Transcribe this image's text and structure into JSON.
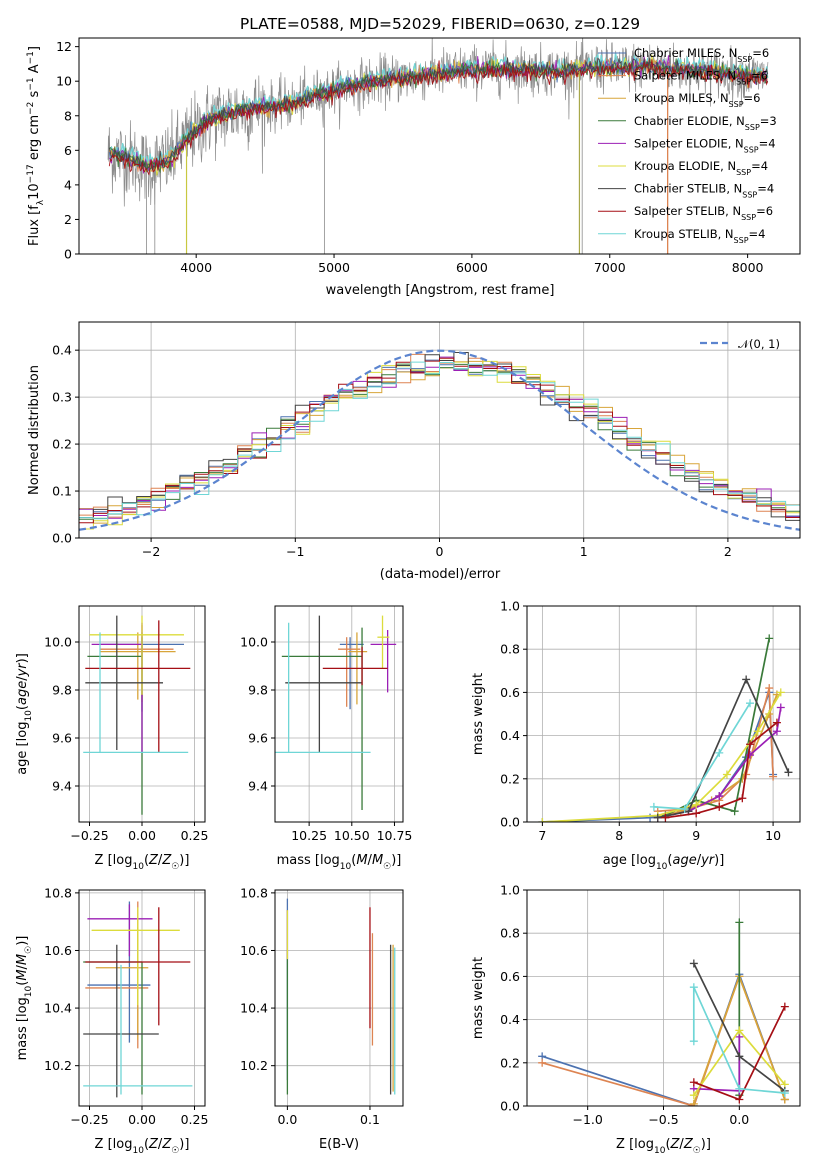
{
  "colors": [
    "#4c72b0",
    "#dd8452",
    "#d8a53a",
    "#3a7a3a",
    "#9b1fb5",
    "#dcdc3c",
    "#444444",
    "#a50f15",
    "#6fd6d6"
  ],
  "chart_data": [
    {
      "id": "spectrum",
      "type": "line",
      "title": "PLATE=0588, MJD=52029, FIBERID=0630, z=0.129",
      "xlabel": "wavelength [Angstrom, rest frame]",
      "ylabel": "Flux [fλ10⁻¹⁷ erg cm⁻² s⁻¹ A⁻¹]",
      "xlim": [
        3150,
        8380
      ],
      "ylim": [
        0,
        12.5
      ],
      "xticks": [
        4000,
        5000,
        6000,
        7000,
        8000
      ],
      "yticks": [
        0,
        2,
        4,
        6,
        8,
        10,
        12
      ],
      "grid": false,
      "legend_position": "top-right",
      "legend": [
        {
          "label": "Chabrier MILES, N_SSP=6",
          "main": "Chabrier MILES, N",
          "sub": "SSP",
          "tail": "=6"
        },
        {
          "label": "Salpeter MILES, N_SSP=6",
          "main": "Salpeter MILES, N",
          "sub": "SSP",
          "tail": "=6"
        },
        {
          "label": "Kroupa MILES, N_SSP=6",
          "main": "Kroupa MILES, N",
          "sub": "SSP",
          "tail": "=6"
        },
        {
          "label": "Chabrier ELODIE, N_SSP=3",
          "main": "Chabrier ELODIE, N",
          "sub": "SSP",
          "tail": "=3"
        },
        {
          "label": "Salpeter ELODIE, N_SSP=4",
          "main": "Salpeter ELODIE, N",
          "sub": "SSP",
          "tail": "=4"
        },
        {
          "label": "Kroupa ELODIE, N_SSP=4",
          "main": "Kroupa ELODIE, N",
          "sub": "SSP",
          "tail": "=4"
        },
        {
          "label": "Chabrier STELIB, N_SSP=4",
          "main": "Chabrier STELIB, N",
          "sub": "SSP",
          "tail": "=4"
        },
        {
          "label": "Salpeter STELIB, N_SSP=6",
          "main": "Salpeter STELIB, N",
          "sub": "SSP",
          "tail": "=6"
        },
        {
          "label": "Kroupa STELIB, N_SSP=4",
          "main": "Kroupa STELIB, N",
          "sub": "SSP",
          "tail": "=4"
        }
      ],
      "data_trend": {
        "x": [
          3370,
          3500,
          3650,
          3800,
          3950,
          4100,
          4300,
          4500,
          4700,
          4900,
          5100,
          5300,
          5500,
          5700,
          5900,
          6100,
          6300,
          6500,
          6700,
          6900,
          7100,
          7300,
          7500,
          7700,
          7900,
          8100
        ],
        "y": [
          5.8,
          5.6,
          5.0,
          5.4,
          6.8,
          7.8,
          8.3,
          8.5,
          8.7,
          9.3,
          9.7,
          10.0,
          10.2,
          10.4,
          10.6,
          10.7,
          10.7,
          10.6,
          10.6,
          10.8,
          10.8,
          10.9,
          10.7,
          10.6,
          10.4,
          10.3
        ]
      },
      "features": {
        "gray_spikes_down": [
          3640,
          3700,
          4930,
          6800
        ],
        "orange_drop_x": 7420,
        "olive_drop_x": 6780,
        "yellow_spike_x": 3930
      }
    },
    {
      "id": "residuals",
      "type": "histogram",
      "xlabel": "(data-model)/error",
      "ylabel": "Normed distribution",
      "xlim": [
        -2.5,
        2.5
      ],
      "ylim": [
        0,
        0.46
      ],
      "xticks": [
        -2,
        -1,
        0,
        1,
        2
      ],
      "yticks": [
        0.0,
        0.1,
        0.2,
        0.3,
        0.4
      ],
      "grid": true,
      "legend_position": "top-right",
      "legend": [
        "𝒩(0, 1)"
      ],
      "bin_width": 0.1,
      "reference_curve": "normal pdf, mean 0, sd 1 (dashed)"
    },
    {
      "id": "Z_vs_age",
      "type": "errorbar",
      "xlabel": "Z [log10(Z/Z☉)]",
      "ylabel": "age [log10(age/yr)]",
      "xlim": [
        -0.3,
        0.3
      ],
      "ylim": [
        9.25,
        10.15
      ],
      "xticks": [
        -0.25,
        0.0,
        0.25
      ],
      "yticks": [
        9.4,
        9.6,
        9.8,
        10.0
      ],
      "grid": true,
      "points": [
        {
          "x": 0.0,
          "xerr": [
            0.2,
            0.2
          ],
          "y": 9.99,
          "yerr": [
            0.28,
            0.05
          ]
        },
        {
          "x": 0.0,
          "xerr": [
            0.2,
            0.15
          ],
          "y": 9.97,
          "yerr": [
            0.22,
            0.1
          ]
        },
        {
          "x": -0.02,
          "xerr": [
            0.18,
            0.18
          ],
          "y": 9.96,
          "yerr": [
            0.2,
            0.08
          ]
        },
        {
          "x": 0.0,
          "xerr": [
            0.26,
            0.0
          ],
          "y": 9.94,
          "yerr": [
            0.66,
            0.08
          ]
        },
        {
          "x": 0.0,
          "xerr": [
            0.24,
            0.0
          ],
          "y": 9.99,
          "yerr": [
            0.45,
            0.09
          ]
        },
        {
          "x": 0.0,
          "xerr": [
            0.25,
            0.2
          ],
          "y": 10.03,
          "yerr": [
            0.25,
            0.08
          ]
        },
        {
          "x": -0.12,
          "xerr": [
            0.15,
            0.22
          ],
          "y": 9.83,
          "yerr": [
            0.28,
            0.28
          ]
        },
        {
          "x": 0.08,
          "xerr": [
            0.35,
            0.15
          ],
          "y": 9.89,
          "yerr": [
            0.35,
            0.2
          ]
        },
        {
          "x": -0.2,
          "xerr": [
            0.08,
            0.42
          ],
          "y": 9.54,
          "yerr": [
            0.0,
            0.5
          ]
        }
      ]
    },
    {
      "id": "mass_vs_age",
      "type": "errorbar",
      "xlabel": "mass [log10(M/M☉)]",
      "ylabel": "",
      "xlim": [
        10.05,
        10.8
      ],
      "ylim": [
        9.25,
        10.15
      ],
      "xticks": [
        10.25,
        10.5,
        10.75
      ],
      "yticks": [
        9.4,
        9.6,
        9.8,
        10.0
      ],
      "grid": true,
      "points": [
        {
          "x": 10.49,
          "xerr": [
            0.06,
            0.08
          ],
          "y": 9.99,
          "yerr": [
            0.27,
            0.03
          ]
        },
        {
          "x": 10.47,
          "xerr": [
            0.05,
            0.08
          ],
          "y": 9.97,
          "yerr": [
            0.24,
            0.05
          ]
        },
        {
          "x": 10.53,
          "xerr": [
            0.05,
            0.06
          ],
          "y": 9.96,
          "yerr": [
            0.22,
            0.08
          ]
        },
        {
          "x": 10.56,
          "xerr": [
            0.47,
            0.0
          ],
          "y": 9.94,
          "yerr": [
            0.64,
            0.12
          ]
        },
        {
          "x": 10.71,
          "xerr": [
            0.1,
            0.05
          ],
          "y": 9.99,
          "yerr": [
            0.2,
            0.06
          ]
        },
        {
          "x": 10.68,
          "xerr": [
            0.03,
            0.04
          ],
          "y": 10.02,
          "yerr": [
            0.13,
            0.09
          ]
        },
        {
          "x": 10.31,
          "xerr": [
            0.2,
            0.25
          ],
          "y": 9.83,
          "yerr": [
            0.29,
            0.28
          ]
        },
        {
          "x": 10.56,
          "xerr": [
            0.23,
            0.15
          ],
          "y": 9.89,
          "yerr": [
            0.07,
            0.09
          ]
        },
        {
          "x": 10.13,
          "xerr": [
            0.1,
            0.48
          ],
          "y": 9.54,
          "yerr": [
            0.0,
            0.54
          ]
        }
      ]
    },
    {
      "id": "age_weights",
      "type": "line",
      "xlabel": "age [log10(age/yr)]",
      "ylabel": "mass weight",
      "xlim": [
        6.8,
        10.35
      ],
      "ylim": [
        0.0,
        1.0
      ],
      "xticks": [
        7,
        8,
        9,
        10
      ],
      "yticks": [
        0.0,
        0.2,
        0.4,
        0.6,
        0.8,
        1.0
      ],
      "grid": true,
      "series": [
        {
          "x": [
            7.0,
            8.4,
            8.9,
            9.3,
            9.65,
            9.95,
            10.0
          ],
          "y": [
            0.0,
            0.02,
            0.05,
            0.12,
            0.3,
            0.6,
            0.22
          ]
        },
        {
          "x": [
            8.5,
            8.9,
            9.3,
            9.65,
            9.95,
            10.0
          ],
          "y": [
            0.05,
            0.06,
            0.1,
            0.22,
            0.62,
            0.21
          ]
        },
        {
          "x": [
            8.5,
            8.8,
            9.2,
            9.6,
            9.95,
            10.05
          ],
          "y": [
            0.02,
            0.05,
            0.1,
            0.2,
            0.5,
            0.59
          ]
        },
        {
          "x": [
            8.6,
            9.0,
            9.5,
            9.95
          ],
          "y": [
            0.03,
            0.1,
            0.05,
            0.85
          ]
        },
        {
          "x": [
            8.5,
            8.9,
            9.3,
            9.7,
            10.05,
            10.1
          ],
          "y": [
            0.02,
            0.05,
            0.12,
            0.31,
            0.42,
            0.53
          ]
        },
        {
          "x": [
            7.0,
            8.5,
            9.0,
            9.4,
            9.8,
            10.1
          ],
          "y": [
            0.0,
            0.03,
            0.08,
            0.22,
            0.42,
            0.6
          ]
        },
        {
          "x": [
            8.5,
            8.9,
            9.65,
            10.2
          ],
          "y": [
            0.02,
            0.05,
            0.66,
            0.23
          ]
        },
        {
          "x": [
            8.6,
            9.0,
            9.3,
            9.6,
            9.7,
            10.05
          ],
          "y": [
            0.02,
            0.04,
            0.07,
            0.11,
            0.36,
            0.46
          ]
        },
        {
          "x": [
            8.45,
            8.85,
            9.3,
            9.7
          ],
          "y": [
            0.07,
            0.06,
            0.32,
            0.55
          ]
        }
      ]
    },
    {
      "id": "Z_vs_mass",
      "type": "errorbar",
      "xlabel": "Z [log10(Z/Z☉)]",
      "ylabel": "mass [log10(M/M☉)]",
      "xlim": [
        -0.3,
        0.3
      ],
      "ylim": [
        10.06,
        10.81
      ],
      "xticks": [
        -0.25,
        0.0,
        0.25
      ],
      "yticks": [
        10.2,
        10.4,
        10.6,
        10.8
      ],
      "grid": true,
      "points": [
        {
          "x": -0.06,
          "xerr": [
            0.2,
            0.1
          ],
          "y": 10.48,
          "yerr": [
            0.2,
            0.29
          ]
        },
        {
          "x": -0.02,
          "xerr": [
            0.25,
            0.05
          ],
          "y": 10.47,
          "yerr": [
            0.21,
            0.3
          ]
        },
        {
          "x": -0.02,
          "xerr": [
            0.2,
            0.05
          ],
          "y": 10.54,
          "yerr": [
            0.25,
            0.14
          ]
        },
        {
          "x": 0.0,
          "xerr": [
            0.28,
            0.0
          ],
          "y": 10.56,
          "yerr": [
            0.46,
            0.0
          ]
        },
        {
          "x": -0.06,
          "xerr": [
            0.2,
            0.11
          ],
          "y": 10.71,
          "yerr": [
            0.13,
            0.05
          ]
        },
        {
          "x": -0.02,
          "xerr": [
            0.22,
            0.2
          ],
          "y": 10.67,
          "yerr": [
            0.26,
            0.08
          ]
        },
        {
          "x": -0.12,
          "xerr": [
            0.16,
            0.2
          ],
          "y": 10.31,
          "yerr": [
            0.22,
            0.31
          ]
        },
        {
          "x": 0.08,
          "xerr": [
            0.35,
            0.15
          ],
          "y": 10.56,
          "yerr": [
            0.22,
            0.19
          ]
        },
        {
          "x": -0.1,
          "xerr": [
            0.18,
            0.34
          ],
          "y": 10.13,
          "yerr": [
            0.03,
            0.42
          ]
        }
      ]
    },
    {
      "id": "EBV_vs_mass",
      "type": "errorbar",
      "xlabel": "E(B-V)",
      "ylabel": "",
      "xlim": [
        -0.015,
        0.14
      ],
      "ylim": [
        10.06,
        10.81
      ],
      "xticks": [
        0.0,
        0.1
      ],
      "yticks": [
        10.2,
        10.4,
        10.6,
        10.8
      ],
      "grid": true,
      "points": [
        {
          "x": 0.0,
          "y": 10.5,
          "yerr": [
            0.35,
            0.28
          ]
        },
        {
          "x": 0.103,
          "y": 10.46,
          "yerr": [
            0.19,
            0.2
          ]
        },
        {
          "x": 0.128,
          "y": 10.5,
          "yerr": [
            0.39,
            0.12
          ]
        },
        {
          "x": 0.0,
          "y": 10.35,
          "yerr": [
            0.25,
            0.25
          ]
        },
        {
          "x": 0.0,
          "y": 10.62,
          "yerr": [
            0.05,
            0.12
          ]
        },
        {
          "x": 0.0,
          "y": 10.62,
          "yerr": [
            0.05,
            0.12
          ]
        },
        {
          "x": 0.125,
          "y": 10.36,
          "yerr": [
            0.26,
            0.26
          ]
        },
        {
          "x": 0.1,
          "y": 10.55,
          "yerr": [
            0.22,
            0.2
          ]
        },
        {
          "x": 0.13,
          "y": 10.35,
          "yerr": [
            0.25,
            0.26
          ]
        }
      ]
    },
    {
      "id": "Z_weights",
      "type": "line",
      "xlabel": "Z [log10(Z/Z☉)]",
      "ylabel": "mass weight",
      "xlim": [
        -1.4,
        0.4
      ],
      "ylim": [
        0.0,
        1.0
      ],
      "xticks": [
        -1.0,
        -0.5,
        0.0
      ],
      "yticks": [
        0.0,
        0.2,
        0.4,
        0.6,
        0.8,
        1.0
      ],
      "grid": true,
      "series": [
        {
          "x": [
            -1.3,
            -0.3,
            0.0,
            0.3
          ],
          "y": [
            0.23,
            0.0,
            0.61,
            0.03
          ]
        },
        {
          "x": [
            -1.3,
            -0.3,
            0.0,
            0.3
          ],
          "y": [
            0.2,
            0.0,
            0.6,
            0.03
          ]
        },
        {
          "x": [
            -0.3,
            0.0,
            0.3
          ],
          "y": [
            0.01,
            0.6,
            0.03
          ]
        },
        {
          "x": [
            0.0,
            0.0
          ],
          "y": [
            0.05,
            0.85
          ]
        },
        {
          "x": [
            -0.3,
            0.0,
            0.0
          ],
          "y": [
            0.08,
            0.07,
            0.32
          ]
        },
        {
          "x": [
            -0.3,
            0.0,
            0.3
          ],
          "y": [
            0.05,
            0.35,
            0.1
          ]
        },
        {
          "x": [
            -0.3,
            0.0,
            0.3
          ],
          "y": [
            0.66,
            0.23,
            0.07
          ]
        },
        {
          "x": [
            -0.3,
            0.0,
            0.3
          ],
          "y": [
            0.11,
            0.03,
            0.46
          ]
        },
        {
          "x": [
            -0.3,
            -0.3,
            0.0,
            0.3
          ],
          "y": [
            0.3,
            0.55,
            0.08,
            0.06
          ]
        }
      ]
    }
  ]
}
